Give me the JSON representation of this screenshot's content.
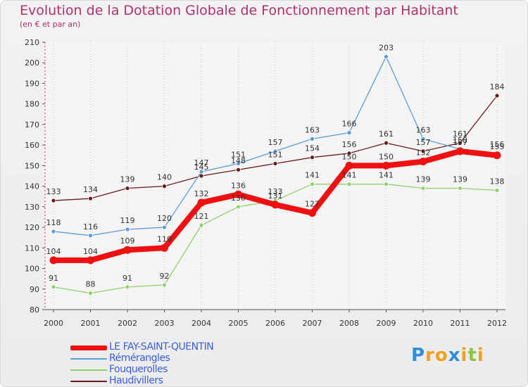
{
  "header": {
    "title": "Evolution de la Dotation Globale de Fonctionnement par Habitant",
    "subtitle": "(en € et par an)"
  },
  "logo": {
    "letters": [
      "P",
      "r",
      "o",
      "x",
      "i",
      "t",
      "i"
    ],
    "colors": [
      "#2f8fd6",
      "#f0a020",
      "#f0a020",
      "#2f8fd6",
      "#f0a020",
      "#8cc63f",
      "#f0a020"
    ]
  },
  "chart_data": {
    "type": "line",
    "title": "Evolution de la Dotation Globale de Fonctionnement par Habitant",
    "subtitle": "(en € et par an)",
    "x": [
      2000,
      2001,
      2002,
      2003,
      2004,
      2005,
      2006,
      2007,
      2008,
      2009,
      2010,
      2011,
      2012
    ],
    "ylim": [
      80,
      210
    ],
    "yticks": [
      80,
      90,
      100,
      110,
      120,
      130,
      140,
      150,
      160,
      170,
      180,
      190,
      200,
      210
    ],
    "grid": "vertical dotted",
    "legend_position": "bottom-left",
    "series": [
      {
        "name": "Haudivillers",
        "color": "#6b1a1a",
        "values": [
          133,
          134,
          139,
          140,
          145,
          148,
          151,
          154,
          156,
          161,
          157,
          161,
          184
        ]
      },
      {
        "name": "Fouquerolles",
        "color": "#8fd16a",
        "values": [
          91,
          88,
          91,
          92,
          121,
          130,
          133,
          141,
          141,
          141,
          139,
          139,
          138
        ]
      },
      {
        "name": "Rémérangles",
        "color": "#5b9bd5",
        "values": [
          118,
          116,
          119,
          120,
          147,
          151,
          157,
          163,
          166,
          203,
          163,
          158,
          156
        ]
      },
      {
        "name": "LE FAY-SAINT-QUENTIN",
        "color": "#ee1111",
        "values": [
          104,
          104,
          109,
          110,
          132,
          136,
          131,
          127,
          150,
          150,
          152,
          157,
          155
        ]
      }
    ],
    "legend_order": [
      "LE FAY-SAINT-QUENTIN",
      "Rémérangles",
      "Fouquerolles",
      "Haudivillers"
    ]
  }
}
